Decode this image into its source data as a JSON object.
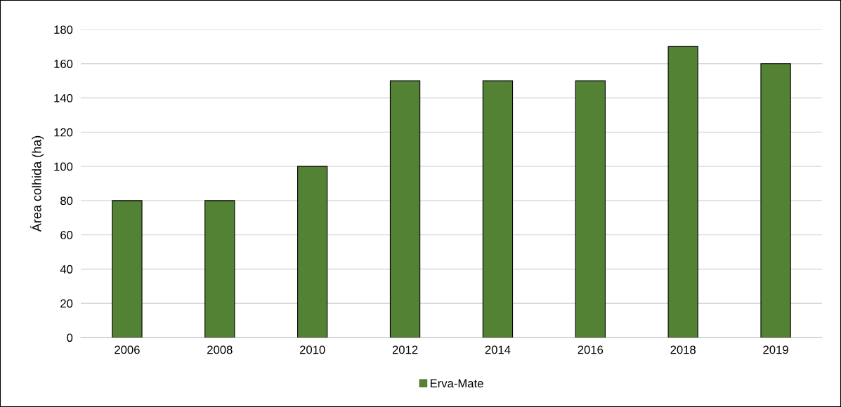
{
  "chart_data": {
    "type": "bar",
    "ylabel": "Área colhida (ha)",
    "categories": [
      "2006",
      "2008",
      "2010",
      "2012",
      "2014",
      "2016",
      "2018",
      "2019"
    ],
    "series": [
      {
        "name": "Erva-Mate",
        "color": "#548235",
        "values": [
          80,
          80,
          100,
          150,
          150,
          150,
          170,
          160
        ]
      }
    ],
    "ylim": [
      0,
      180
    ],
    "yticks": [
      0,
      20,
      40,
      60,
      80,
      100,
      120,
      140,
      160,
      180
    ],
    "grid": "y",
    "legend": "bottom"
  }
}
